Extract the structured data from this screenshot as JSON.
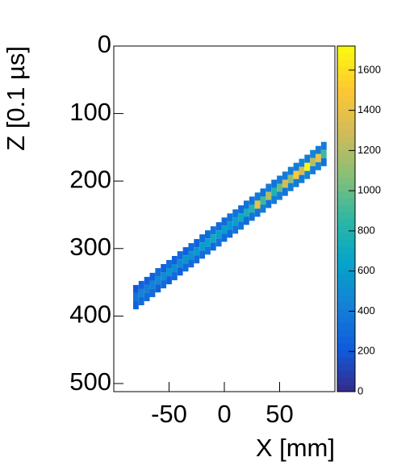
{
  "chart_data": {
    "type": "heatmap",
    "xlabel": "X [mm]",
    "ylabel": "Z [0.1 µs]",
    "xlim": [
      -100,
      100
    ],
    "ylim": [
      0,
      512
    ],
    "y_inverted": true,
    "xticks": [
      -50,
      0,
      50
    ],
    "yticks": [
      0,
      100,
      200,
      300,
      400,
      500
    ],
    "zlim": [
      0,
      1720
    ],
    "zticks": [
      0,
      200,
      400,
      600,
      800,
      1000,
      1200,
      1400,
      1600
    ],
    "colorscale": [
      "#352a87",
      "#0f5cdd",
      "#1481d6",
      "#06a4ca",
      "#2eb7a4",
      "#87bf77",
      "#d1bb59",
      "#fec832",
      "#f9fb0e"
    ],
    "x": [
      -80,
      -80,
      -80,
      -75,
      -75,
      -75,
      -70,
      -70,
      -70,
      -65,
      -65,
      -65,
      -60,
      -60,
      -60,
      -55,
      -55,
      -55,
      -50,
      -50,
      -50,
      -45,
      -45,
      -45,
      -40,
      -40,
      -40,
      -35,
      -35,
      -35,
      -30,
      -30,
      -30,
      -25,
      -25,
      -25,
      -20,
      -20,
      -20,
      -15,
      -15,
      -15,
      -10,
      -10,
      -10,
      -5,
      -5,
      -5,
      0,
      0,
      0,
      5,
      5,
      5,
      10,
      10,
      10,
      15,
      15,
      15,
      20,
      20,
      20,
      25,
      25,
      25,
      30,
      30,
      30,
      35,
      35,
      35,
      40,
      40,
      40,
      45,
      45,
      45,
      50,
      50,
      50,
      55,
      55,
      55,
      60,
      60,
      60,
      65,
      65,
      65,
      70,
      70,
      70,
      75,
      75,
      75,
      80,
      80,
      80,
      85,
      85,
      85,
      90,
      90,
      90
    ],
    "y": [
      360,
      372,
      384,
      354,
      366,
      378,
      348,
      360,
      372,
      342,
      354,
      366,
      335,
      347,
      359,
      329,
      341,
      353,
      323,
      335,
      347,
      317,
      329,
      341,
      310,
      322,
      334,
      304,
      316,
      328,
      298,
      310,
      322,
      292,
      304,
      316,
      285,
      297,
      309,
      279,
      291,
      303,
      273,
      285,
      297,
      267,
      279,
      291,
      260,
      272,
      284,
      254,
      266,
      278,
      248,
      260,
      272,
      242,
      254,
      266,
      235,
      247,
      259,
      229,
      241,
      253,
      223,
      235,
      247,
      217,
      229,
      241,
      210,
      222,
      234,
      204,
      216,
      228,
      198,
      210,
      222,
      192,
      204,
      216,
      185,
      197,
      209,
      179,
      191,
      203,
      173,
      185,
      197,
      167,
      179,
      191,
      160,
      172,
      184,
      154,
      166,
      178,
      148,
      160,
      172
    ],
    "values": [
      200,
      350,
      250,
      250,
      450,
      300,
      250,
      420,
      300,
      250,
      450,
      300,
      300,
      480,
      250,
      250,
      500,
      300,
      300,
      520,
      250,
      250,
      500,
      300,
      300,
      480,
      250,
      250,
      550,
      300,
      300,
      520,
      300,
      250,
      560,
      300,
      300,
      600,
      300,
      300,
      650,
      350,
      350,
      700,
      300,
      300,
      620,
      350,
      300,
      600,
      300,
      350,
      580,
      300,
      350,
      620,
      350,
      300,
      700,
      350,
      350,
      750,
      300,
      350,
      800,
      350,
      400,
      1400,
      350,
      350,
      900,
      400,
      400,
      1200,
      350,
      350,
      800,
      400,
      400,
      1000,
      400,
      400,
      1300,
      350,
      400,
      1100,
      400,
      400,
      1500,
      400,
      450,
      1300,
      400,
      400,
      1700,
      450,
      450,
      1200,
      400,
      400,
      1400,
      450,
      400,
      900,
      350
    ]
  }
}
